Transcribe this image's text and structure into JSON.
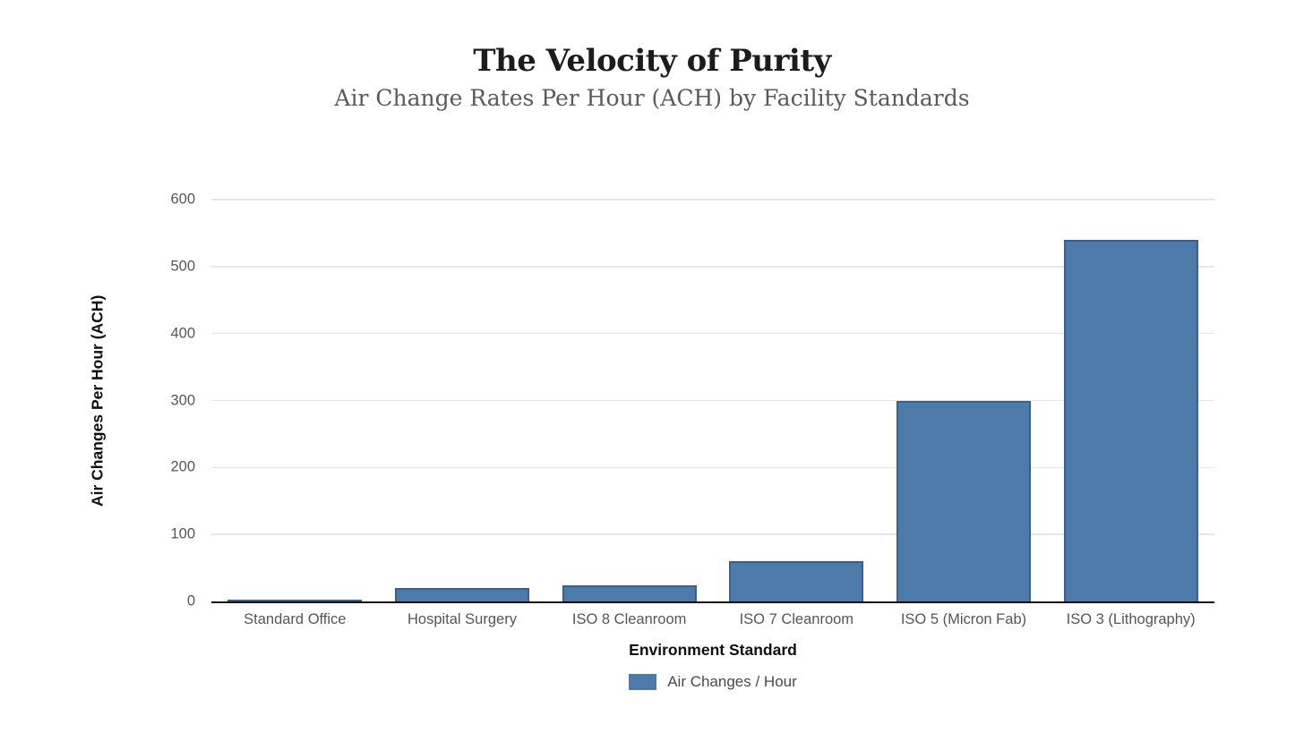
{
  "header": {
    "title": "The Velocity of Purity",
    "subtitle": "Air Change Rates Per Hour (ACH) by Facility Standards"
  },
  "chart_data": {
    "type": "bar",
    "title": "The Velocity of Purity",
    "subtitle": "Air Change Rates Per Hour (ACH) by Facility Standards",
    "categories": [
      "Standard Office",
      "Hospital Surgery",
      "ISO 8 Cleanroom",
      "ISO 7 Cleanroom",
      "ISO 5 (Micron Fab)",
      "ISO 3 (Lithography)"
    ],
    "series": [
      {
        "name": "Air Changes / Hour",
        "values": [
          2,
          20,
          24,
          60,
          300,
          540
        ]
      }
    ],
    "xlabel": "Environment Standard",
    "ylabel": "Air Changes Per Hour (ACH)",
    "ylim": [
      0,
      600
    ],
    "ytick_step": 100,
    "ytick_labels": [
      "0",
      "100",
      "200",
      "300",
      "400",
      "500",
      "600"
    ],
    "grid": "horizontal",
    "legend_position": "bottom",
    "bar_color": "#4e7aa9",
    "bar_border_color": "#35618f",
    "axis_line_color": "#111111",
    "gridline_color": "#e3e7ec"
  }
}
